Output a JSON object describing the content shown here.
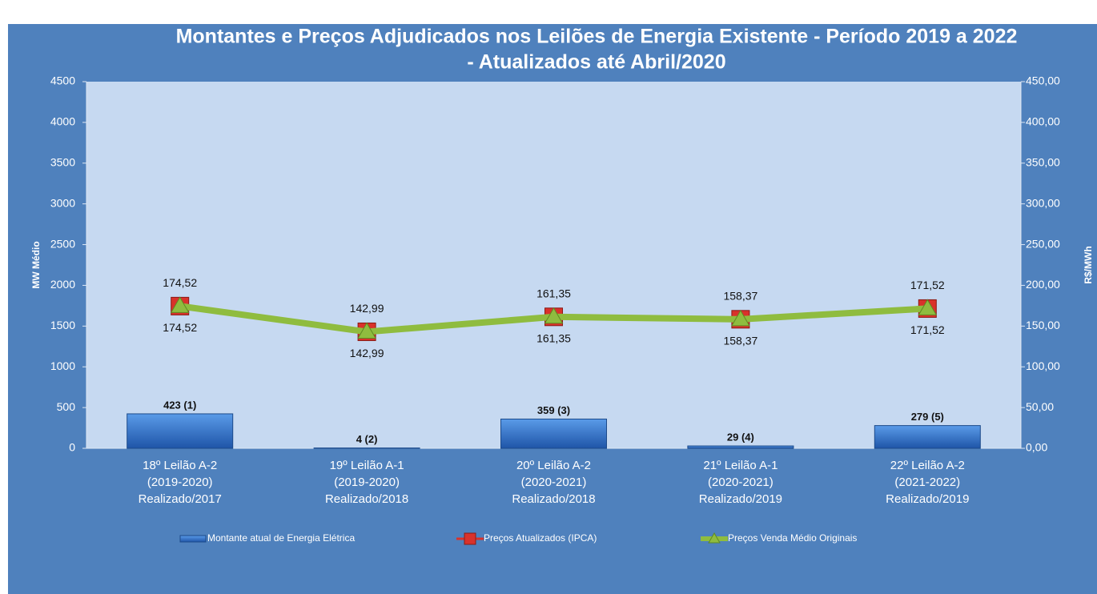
{
  "chart_data": {
    "type": "bar",
    "title": [
      "Montantes e Preços Adjudicados nos Leilões de Energia Existente - Período 2019 a 2022",
      "- Atualizados até Abril/2020"
    ],
    "y_label": "MW Médio",
    "y2_label": "R$/MWh",
    "categories": [
      [
        "18º Leilão  A-2",
        "(2019-2020)",
        "Realizado/2017"
      ],
      [
        "19º Leilão  A-1",
        "(2019-2020)",
        "Realizado/2018"
      ],
      [
        "20º Leilão  A-2",
        "(2020-2021)",
        "Realizado/2018"
      ],
      [
        "21º Leilão  A-1",
        "(2020-2021)",
        "Realizado/2019"
      ],
      [
        "22º Leilão  A-2",
        "(2021-2022)",
        "Realizado/2019"
      ]
    ],
    "series": [
      {
        "name": "Montante atual de Energia Elétrica",
        "type": "bar",
        "color": "#2e6bc4",
        "values": [
          423,
          4,
          359,
          29,
          279
        ],
        "value_labels": [
          "423 (1)",
          "4 (2)",
          "359 (3)",
          "29 (4)",
          "279 (5)"
        ]
      },
      {
        "name": "Preços Atualizados (IPCA)",
        "type": "line",
        "axis": "y2",
        "color": "#d9322b",
        "values": [
          174.52,
          142.99,
          161.35,
          158.37,
          171.52
        ],
        "value_labels": [
          "174,52",
          "142,99",
          "161,35",
          "158,37",
          "171,52"
        ]
      },
      {
        "name": "Preços Venda Médio Originais",
        "type": "line",
        "axis": "y2",
        "color": "#8fbc3f",
        "values": [
          174.52,
          142.99,
          161.35,
          158.37,
          171.52
        ],
        "value_labels": [
          "174,52",
          "142,99",
          "161,35",
          "158,37",
          "171,52"
        ]
      }
    ],
    "ylim": [
      0,
      4500
    ],
    "yticks": [
      0,
      500,
      1000,
      1500,
      2000,
      2500,
      3000,
      3500,
      4000,
      4500
    ],
    "y2lim": [
      0,
      450
    ],
    "y2ticks": [
      {
        "value": 0,
        "label": "0,00"
      },
      {
        "value": 50,
        "label": "50,00"
      },
      {
        "value": 100,
        "label": "100,00"
      },
      {
        "value": 150,
        "label": "150,00"
      },
      {
        "value": 200,
        "label": "200,00"
      },
      {
        "value": 250,
        "label": "250,00"
      },
      {
        "value": 300,
        "label": "300,00"
      },
      {
        "value": 350,
        "label": "350,00"
      },
      {
        "value": 400,
        "label": "400,00"
      },
      {
        "value": 450,
        "label": "450,00"
      }
    ],
    "legend": "bottom"
  }
}
